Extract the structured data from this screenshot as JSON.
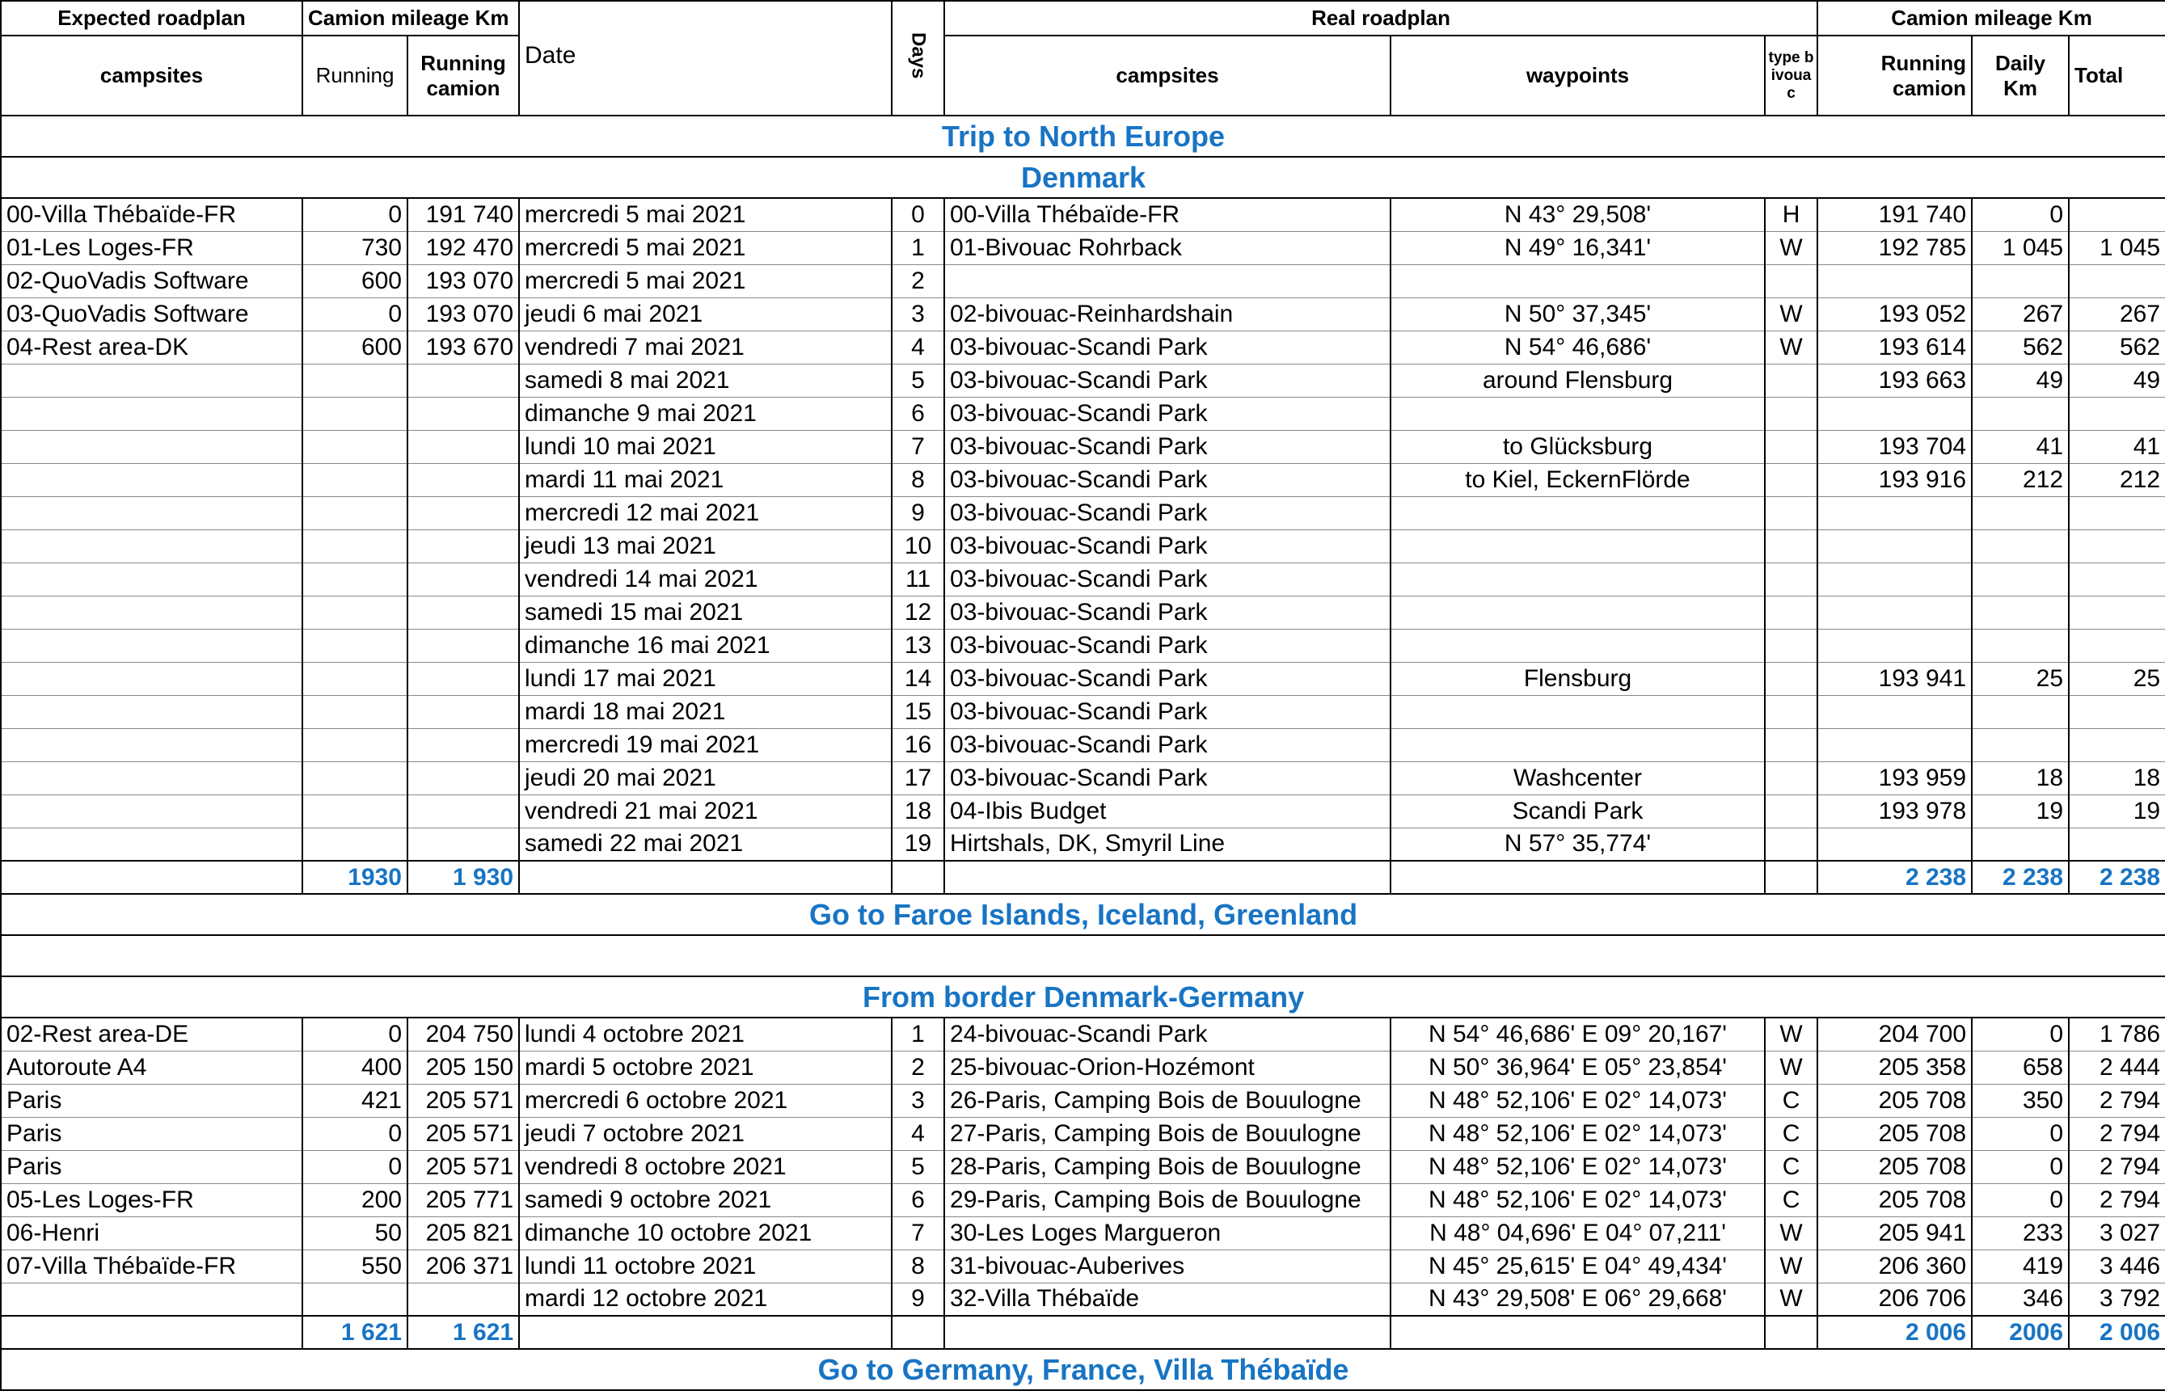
{
  "header": {
    "expected_roadplan": "Expected roadplan",
    "camion_mileage_expected": "Camion mileage Km",
    "date": "Date",
    "days": "Days",
    "real_roadplan": "Real roadplan",
    "camion_mileage_real": "Camion mileage Km",
    "columns": [
      "campsites",
      "Running",
      "Running camion",
      "campsites",
      "waypoints",
      "type bivouac",
      "Running camion",
      "Daily Km",
      "Total"
    ]
  },
  "title": "Trip to North Europe",
  "sections": [
    {
      "title": "Denmark",
      "rows": [
        [
          "00-Villa Thébaïde-FR",
          "0",
          "191 740",
          "mercredi 5 mai 2021",
          "0",
          "00-Villa Thébaïde-FR",
          "N 43° 29,508'",
          "H",
          "191 740",
          "0",
          null
        ],
        [
          "01-Les Loges-FR",
          "730",
          "192 470",
          "mercredi 5 mai 2021",
          "1",
          "01-Bivouac Rohrback",
          "N 49° 16,341'",
          "W",
          "192 785",
          "1 045",
          "1 045"
        ],
        [
          "02-QuoVadis Software",
          "600",
          "193 070",
          "mercredi 5 mai 2021",
          "2",
          null,
          null,
          null,
          null,
          null,
          null
        ],
        [
          "03-QuoVadis Software",
          "0",
          "193 070",
          "jeudi 6 mai 2021",
          "3",
          "02-bivouac-Reinhardshain",
          "N 50° 37,345'",
          "W",
          "193 052",
          "267",
          "267"
        ],
        [
          "04-Rest area-DK",
          "600",
          "193 670",
          "vendredi 7 mai 2021",
          "4",
          "03-bivouac-Scandi Park",
          "N 54° 46,686'",
          "W",
          "193 614",
          "562",
          "562"
        ],
        [
          null,
          null,
          null,
          "samedi 8 mai 2021",
          "5",
          "03-bivouac-Scandi Park",
          "around Flensburg",
          null,
          "193 663",
          "49",
          "49"
        ],
        [
          null,
          null,
          null,
          "dimanche 9 mai 2021",
          "6",
          "03-bivouac-Scandi Park",
          null,
          null,
          null,
          null,
          null
        ],
        [
          null,
          null,
          null,
          "lundi 10 mai 2021",
          "7",
          "03-bivouac-Scandi Park",
          "to Glücksburg",
          null,
          "193 704",
          "41",
          "41"
        ],
        [
          null,
          null,
          null,
          "mardi 11 mai 2021",
          "8",
          "03-bivouac-Scandi Park",
          "to Kiel, EckernFlörde",
          null,
          "193 916",
          "212",
          "212"
        ],
        [
          null,
          null,
          null,
          "mercredi 12 mai 2021",
          "9",
          "03-bivouac-Scandi Park",
          null,
          null,
          null,
          null,
          null
        ],
        [
          null,
          null,
          null,
          "jeudi 13 mai 2021",
          "10",
          "03-bivouac-Scandi Park",
          null,
          null,
          null,
          null,
          null
        ],
        [
          null,
          null,
          null,
          "vendredi 14 mai 2021",
          "11",
          "03-bivouac-Scandi Park",
          null,
          null,
          null,
          null,
          null
        ],
        [
          null,
          null,
          null,
          "samedi 15 mai 2021",
          "12",
          "03-bivouac-Scandi Park",
          null,
          null,
          null,
          null,
          null
        ],
        [
          null,
          null,
          null,
          "dimanche 16 mai 2021",
          "13",
          "03-bivouac-Scandi Park",
          null,
          null,
          null,
          null,
          null
        ],
        [
          null,
          null,
          null,
          "lundi 17 mai 2021",
          "14",
          "03-bivouac-Scandi Park",
          "Flensburg",
          null,
          "193 941",
          "25",
          "25"
        ],
        [
          null,
          null,
          null,
          "mardi 18 mai 2021",
          "15",
          "03-bivouac-Scandi Park",
          null,
          null,
          null,
          null,
          null
        ],
        [
          null,
          null,
          null,
          "mercredi 19 mai 2021",
          "16",
          "03-bivouac-Scandi Park",
          null,
          null,
          null,
          null,
          null
        ],
        [
          null,
          null,
          null,
          "jeudi 20 mai 2021",
          "17",
          "03-bivouac-Scandi Park",
          "Washcenter",
          null,
          "193 959",
          "18",
          "18"
        ],
        [
          null,
          null,
          null,
          "vendredi 21 mai 2021",
          "18",
          "04-Ibis Budget",
          "Scandi Park",
          null,
          "193 978",
          "19",
          "19"
        ],
        [
          null,
          null,
          null,
          "samedi 22 mai 2021",
          "19",
          "Hirtshals, DK, Smyril Line",
          "N 57° 35,774'",
          null,
          null,
          null,
          null
        ]
      ],
      "totals": [
        null,
        "1930",
        "1 930",
        null,
        null,
        null,
        null,
        null,
        "2 238",
        "2 238",
        "2 238"
      ],
      "footer": "Go to Faroe Islands, Iceland, Greenland"
    },
    {
      "title": "From border Denmark-Germany",
      "rows": [
        [
          "02-Rest area-DE",
          "0",
          "204 750",
          "lundi 4 octobre 2021",
          "1",
          "24-bivouac-Scandi Park",
          "N 54° 46,686' E 09° 20,167'",
          "W",
          "204 700",
          "0",
          "1 786"
        ],
        [
          "Autoroute A4",
          "400",
          "205 150",
          "mardi 5 octobre 2021",
          "2",
          "25-bivouac-Orion-Hozémont",
          "N 50° 36,964' E 05° 23,854'",
          "W",
          "205 358",
          "658",
          "2 444"
        ],
        [
          "Paris",
          "421",
          "205 571",
          "mercredi 6 octobre 2021",
          "3",
          "26-Paris, Camping Bois de Bouulogne",
          "N 48° 52,106' E 02° 14,073'",
          "C",
          "205 708",
          "350",
          "2 794"
        ],
        [
          "Paris",
          "0",
          "205 571",
          "jeudi 7 octobre 2021",
          "4",
          "27-Paris, Camping Bois de Bouulogne",
          "N 48° 52,106' E 02° 14,073'",
          "C",
          "205 708",
          "0",
          "2 794"
        ],
        [
          "Paris",
          "0",
          "205 571",
          "vendredi 8 octobre 2021",
          "5",
          "28-Paris, Camping Bois de Bouulogne",
          "N 48° 52,106' E 02° 14,073'",
          "C",
          "205 708",
          "0",
          "2 794"
        ],
        [
          "05-Les Loges-FR",
          "200",
          "205 771",
          "samedi 9 octobre 2021",
          "6",
          "29-Paris, Camping Bois de Bouulogne",
          "N 48° 52,106' E 02° 14,073'",
          "C",
          "205 708",
          "0",
          "2 794"
        ],
        [
          "06-Henri",
          "50",
          "205 821",
          "dimanche 10 octobre 2021",
          "7",
          "30-Les Loges Margueron",
          "N 48° 04,696' E 04° 07,211'",
          "W",
          "205 941",
          "233",
          "3 027"
        ],
        [
          "07-Villa Thébaïde-FR",
          "550",
          "206 371",
          "lundi 11 octobre 2021",
          "8",
          "31-bivouac-Auberives",
          "N 45° 25,615' E 04° 49,434'",
          "W",
          "206 360",
          "419",
          "3 446"
        ],
        [
          null,
          null,
          null,
          "mardi 12 octobre 2021",
          "9",
          "32-Villa Thébaïde",
          "N 43° 29,508' E 06° 29,668'",
          "W",
          "206 706",
          "346",
          "3 792"
        ]
      ],
      "totals": [
        null,
        "1 621",
        "1 621",
        null,
        null,
        null,
        null,
        null,
        "2 006",
        "2006",
        "2 006"
      ],
      "footer": "Go to Germany, France, Villa Thébaïde"
    }
  ]
}
